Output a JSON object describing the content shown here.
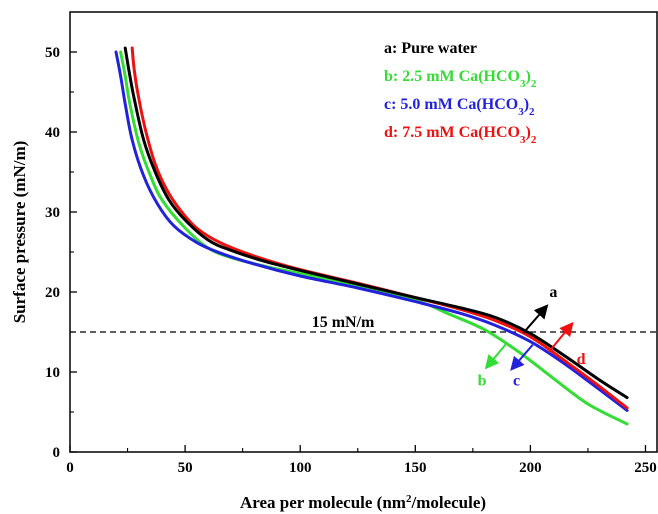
{
  "chart_data": {
    "type": "line",
    "xlabel": "Area per molecule (nm²/molecule)",
    "xlabel_parts": {
      "before": "Area per molecule (nm",
      "sup": "2",
      "after": "/molecule)"
    },
    "ylabel": "Surface pressure (mN/m)",
    "xlim": [
      0,
      255
    ],
    "ylim": [
      0,
      55
    ],
    "xticks": [
      0,
      50,
      100,
      150,
      200,
      250
    ],
    "yticks": [
      0,
      10,
      20,
      30,
      40,
      50
    ],
    "grid": false,
    "legend_position": "top-right",
    "series": [
      {
        "key": "a",
        "legend": {
          "before": "a: Pure water",
          "sub": "",
          "after": ""
        },
        "color": "#000000",
        "x": [
          24,
          26,
          28,
          32,
          37,
          43,
          50,
          60,
          70,
          85,
          100,
          125,
          150,
          170,
          185,
          200,
          215,
          230,
          242
        ],
        "y": [
          50.5,
          47,
          44,
          39,
          35,
          31.5,
          29,
          26.5,
          25.2,
          23.8,
          22.7,
          21,
          19.3,
          18,
          16.8,
          14.8,
          12,
          9,
          6.8
        ]
      },
      {
        "key": "b",
        "legend": {
          "before": "b: 2.5 mM Ca(HCO",
          "sub": "3",
          "after": ")2"
        },
        "color": "#33dd33",
        "x": [
          22,
          24,
          26,
          30,
          35,
          40,
          50,
          60,
          70,
          85,
          100,
          125,
          150,
          165,
          180,
          195,
          210,
          225,
          242
        ],
        "y": [
          50,
          47,
          43.5,
          38.5,
          34.5,
          31.5,
          28,
          25.5,
          24.3,
          23.2,
          22.3,
          20.8,
          19,
          17.2,
          15.3,
          12.5,
          9.2,
          6,
          3.5
        ]
      },
      {
        "key": "c",
        "legend": {
          "before": "c: 5.0 mM Ca(HCO",
          "sub": "3",
          "after": ")2"
        },
        "color": "#2222dd",
        "x": [
          20,
          22,
          24,
          27,
          32,
          38,
          45,
          55,
          65,
          80,
          100,
          125,
          150,
          170,
          185,
          200,
          215,
          230,
          242
        ],
        "y": [
          50,
          47,
          43.5,
          39,
          34.5,
          31,
          28.3,
          26.2,
          24.9,
          23.5,
          22,
          20.5,
          18.8,
          17.3,
          15.8,
          13.8,
          11,
          7.8,
          5.2
        ]
      },
      {
        "key": "d",
        "legend": {
          "before": "d: 7.5 mM Ca(HCO",
          "sub": "3",
          "after": ")2"
        },
        "color": "#ee1111",
        "x": [
          27,
          28,
          30,
          33,
          37,
          42,
          48,
          55,
          65,
          80,
          100,
          125,
          150,
          170,
          185,
          200,
          215,
          230,
          242
        ],
        "y": [
          50.5,
          47.5,
          44,
          40,
          36,
          32.8,
          30.2,
          28,
          26.2,
          24.5,
          22.8,
          21.1,
          19.3,
          17.8,
          16.4,
          14.4,
          11.4,
          8.2,
          5.5
        ]
      }
    ],
    "reference_line": {
      "y": 15,
      "label": "15 mN/m",
      "style": "dashed"
    },
    "annotations": [
      {
        "text": "a",
        "color": "#000000",
        "arrow_from": [
          197,
          14.9
        ],
        "arrow_to": [
          207,
          18.2
        ],
        "label_at": [
          210,
          19.4
        ]
      },
      {
        "text": "b",
        "color": "#33dd33",
        "arrow_from": [
          190,
          13.7
        ],
        "arrow_to": [
          181,
          10.6
        ],
        "label_at": [
          179,
          8.3
        ]
      },
      {
        "text": "c",
        "color": "#2222dd",
        "arrow_from": [
          201,
          13.4
        ],
        "arrow_to": [
          192,
          10.4
        ],
        "label_at": [
          194,
          8.3
        ]
      },
      {
        "text": "d",
        "color": "#ee1111",
        "arrow_from": [
          208,
          12.5
        ],
        "arrow_to": [
          218,
          16.0
        ],
        "label_at": [
          222,
          11.0
        ]
      }
    ]
  }
}
